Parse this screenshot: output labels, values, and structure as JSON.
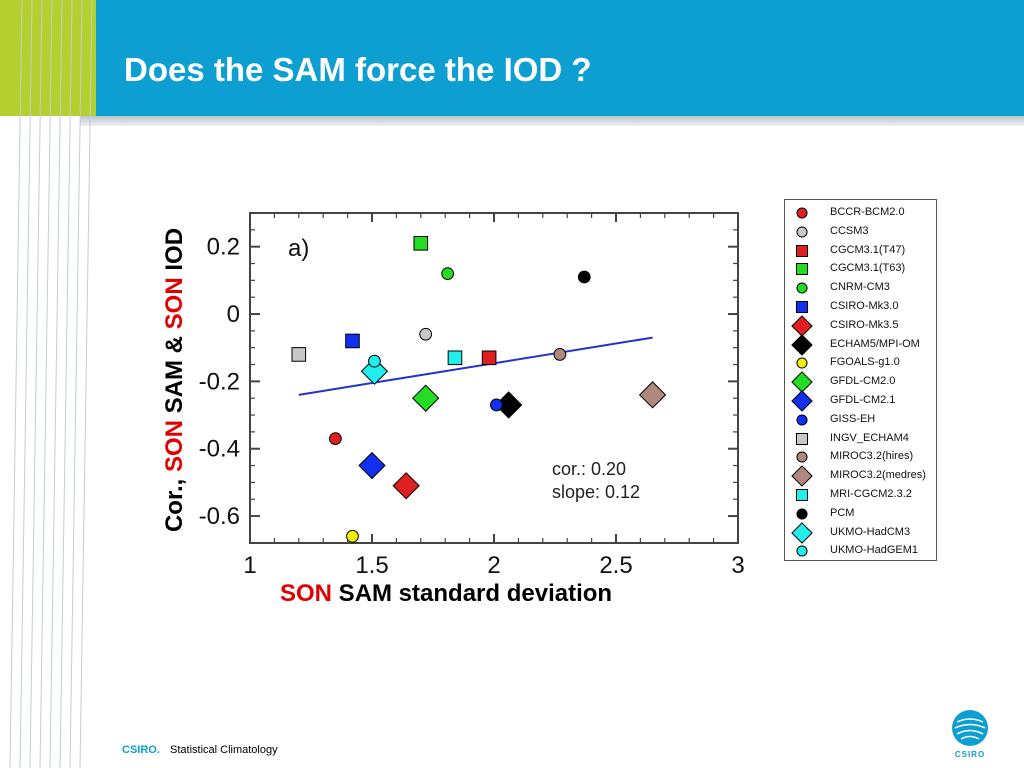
{
  "slide": {
    "title": "Does the SAM force the IOD ?"
  },
  "footer": {
    "brand": "CSIRO.",
    "text": "Statistical Climatology",
    "logo_text": "CSIRO"
  },
  "colors": {
    "header_blue": "#0e9fd2",
    "accent_green": "#b5cf2e",
    "highlight_red": "#e00000",
    "fit_line": "#2233cc"
  },
  "chart_data": {
    "type": "scatter",
    "panel_label": "a)",
    "xlabel_prefix": "SON",
    "xlabel_suffix": " SAM standard deviation",
    "ylabel_parts": [
      "Cor., ",
      "SON",
      " SAM & ",
      "SON",
      " IOD"
    ],
    "xlim": [
      1,
      3
    ],
    "ylim": [
      -0.68,
      0.3
    ],
    "xticks": [
      "1",
      "1.5",
      "2",
      "2.5",
      "3"
    ],
    "xtick_values": [
      1,
      1.5,
      2,
      2.5,
      3
    ],
    "yticks": [
      "0.2",
      "0",
      "-0.2",
      "-0.4",
      "-0.6"
    ],
    "ytick_values": [
      0.2,
      0,
      -0.2,
      -0.4,
      -0.6
    ],
    "annotation_lines": [
      "cor.: 0.20",
      "slope: 0.12"
    ],
    "fit_line": {
      "x": [
        1.2,
        2.65
      ],
      "y": [
        -0.24,
        -0.07
      ]
    },
    "series": [
      {
        "name": "BCCR-BCM2.0",
        "marker": "circle",
        "color": "#e02020",
        "x": 1.35,
        "y": -0.37
      },
      {
        "name": "CCSM3",
        "marker": "circle",
        "color": "#c8c8c8",
        "x": 1.72,
        "y": -0.06
      },
      {
        "name": "CGCM3.1(T47)",
        "marker": "square",
        "color": "#e02020",
        "x": 1.98,
        "y": -0.13
      },
      {
        "name": "CGCM3.1(T63)",
        "marker": "square",
        "color": "#22dd22",
        "x": 1.7,
        "y": 0.21
      },
      {
        "name": "CNRM-CM3",
        "marker": "circle",
        "color": "#22dd22",
        "x": 1.81,
        "y": 0.12
      },
      {
        "name": "CSIRO-Mk3.0",
        "marker": "square",
        "color": "#1030ee",
        "x": 1.42,
        "y": -0.08
      },
      {
        "name": "CSIRO-Mk3.5",
        "marker": "diamond",
        "color": "#e02020",
        "x": 1.64,
        "y": -0.51
      },
      {
        "name": "ECHAM5/MPI-OM",
        "marker": "diamond",
        "color": "#000000",
        "x": 2.06,
        "y": -0.27
      },
      {
        "name": "FGOALS-g1.0",
        "marker": "circle",
        "color": "#f5f000",
        "x": 1.42,
        "y": -0.66
      },
      {
        "name": "GFDL-CM2.0",
        "marker": "diamond",
        "color": "#22dd22",
        "x": 1.72,
        "y": -0.25
      },
      {
        "name": "GFDL-CM2.1",
        "marker": "diamond",
        "color": "#1030ee",
        "x": 1.5,
        "y": -0.45
      },
      {
        "name": "GISS-EH",
        "marker": "circle",
        "color": "#1030ee",
        "x": 2.01,
        "y": -0.27
      },
      {
        "name": "INGV_ECHAM4",
        "marker": "square",
        "color": "#c8c8c8",
        "x": 1.2,
        "y": -0.12
      },
      {
        "name": "MIROC3.2(hires)",
        "marker": "circle",
        "color": "#b08880",
        "x": 2.27,
        "y": -0.12
      },
      {
        "name": "MIROC3.2(medres)",
        "marker": "diamond",
        "color": "#b08880",
        "x": 2.65,
        "y": -0.24
      },
      {
        "name": "MRI-CGCM2.3.2",
        "marker": "square",
        "color": "#22eeee",
        "x": 1.84,
        "y": -0.13
      },
      {
        "name": "PCM",
        "marker": "circle",
        "color": "#000000",
        "x": 2.37,
        "y": 0.11
      },
      {
        "name": "UKMO-HadCM3",
        "marker": "diamond",
        "color": "#22eeee",
        "x": 1.51,
        "y": -0.17
      },
      {
        "name": "UKMO-HadGEM1",
        "marker": "circle",
        "color": "#22eeee",
        "x": 1.51,
        "y": -0.14
      }
    ]
  }
}
